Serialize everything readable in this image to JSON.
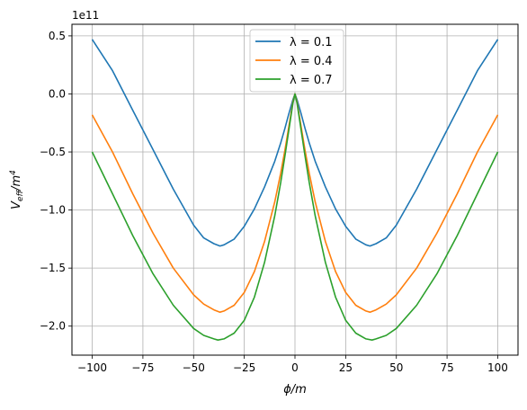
{
  "chart_data": {
    "type": "line",
    "title": "",
    "xlabel_main": "ϕ",
    "xlabel_unit": "/m",
    "ylabel_main": "V",
    "ylabel_sub": "eff",
    "ylabel_unit": "/m",
    "ylabel_sup": "4",
    "y_offset_text": "1e11",
    "xlim": [
      -110,
      110
    ],
    "ylim": [
      -2.25,
      0.6
    ],
    "xticks": [
      -100,
      -75,
      -50,
      -25,
      0,
      25,
      50,
      75,
      100
    ],
    "xtick_labels": [
      "−100",
      "−75",
      "−50",
      "−25",
      "0",
      "25",
      "50",
      "75",
      "100"
    ],
    "yticks": [
      -2.0,
      -1.5,
      -1.0,
      -0.5,
      0.0,
      0.5
    ],
    "ytick_labels": [
      "−2.0",
      "−1.5",
      "−1.0",
      "−0.5",
      "0.0",
      "0.5"
    ],
    "grid": true,
    "legend_position": "top-center",
    "series": [
      {
        "name": "λ = 0.1",
        "color": "#1f77b4",
        "x": [
          -100,
          -90,
          -80,
          -70,
          -60,
          -50,
          -45,
          -40,
          -37,
          -35,
          -30,
          -25,
          -20,
          -15,
          -10,
          -7,
          -5,
          -3,
          -1,
          0,
          1,
          3,
          5,
          7,
          10,
          15,
          20,
          25,
          30,
          35,
          37,
          40,
          45,
          50,
          60,
          70,
          80,
          90,
          100
        ],
        "y": [
          0.47,
          0.2,
          -0.14,
          -0.48,
          -0.82,
          -1.13,
          -1.24,
          -1.29,
          -1.31,
          -1.3,
          -1.25,
          -1.14,
          -0.99,
          -0.8,
          -0.58,
          -0.42,
          -0.3,
          -0.17,
          -0.05,
          0.0,
          -0.05,
          -0.17,
          -0.3,
          -0.42,
          -0.58,
          -0.8,
          -0.99,
          -1.14,
          -1.25,
          -1.3,
          -1.31,
          -1.29,
          -1.24,
          -1.13,
          -0.82,
          -0.48,
          -0.14,
          0.2,
          0.47
        ]
      },
      {
        "name": "λ = 0.4",
        "color": "#ff7f0e",
        "x": [
          -100,
          -90,
          -80,
          -70,
          -60,
          -50,
          -45,
          -40,
          -37,
          -35,
          -30,
          -25,
          -20,
          -15,
          -10,
          -7,
          -5,
          -3,
          -1,
          0,
          1,
          3,
          5,
          7,
          10,
          15,
          20,
          25,
          30,
          35,
          37,
          40,
          45,
          50,
          60,
          70,
          80,
          90,
          100
        ],
        "y": [
          -0.18,
          -0.5,
          -0.86,
          -1.2,
          -1.5,
          -1.73,
          -1.81,
          -1.86,
          -1.88,
          -1.87,
          -1.82,
          -1.71,
          -1.53,
          -1.27,
          -0.93,
          -0.68,
          -0.49,
          -0.28,
          -0.07,
          0.0,
          -0.07,
          -0.28,
          -0.49,
          -0.68,
          -0.93,
          -1.27,
          -1.53,
          -1.71,
          -1.82,
          -1.87,
          -1.88,
          -1.86,
          -1.81,
          -1.73,
          -1.5,
          -1.2,
          -0.86,
          -0.5,
          -0.18
        ]
      },
      {
        "name": "λ = 0.7",
        "color": "#2ca02c",
        "x": [
          -100,
          -90,
          -80,
          -70,
          -60,
          -50,
          -45,
          -40,
          -38,
          -35,
          -30,
          -25,
          -20,
          -15,
          -10,
          -7,
          -5,
          -3,
          -1,
          0,
          1,
          3,
          5,
          7,
          10,
          15,
          20,
          25,
          30,
          35,
          38,
          40,
          45,
          50,
          60,
          70,
          80,
          90,
          100
        ],
        "y": [
          -0.5,
          -0.86,
          -1.22,
          -1.55,
          -1.82,
          -2.02,
          -2.08,
          -2.11,
          -2.12,
          -2.11,
          -2.06,
          -1.95,
          -1.75,
          -1.45,
          -1.05,
          -0.76,
          -0.54,
          -0.31,
          -0.08,
          0.0,
          -0.08,
          -0.31,
          -0.54,
          -0.76,
          -1.05,
          -1.45,
          -1.75,
          -1.95,
          -2.06,
          -2.11,
          -2.12,
          -2.11,
          -2.08,
          -2.02,
          -1.82,
          -1.55,
          -1.22,
          -0.86,
          -0.5
        ]
      }
    ]
  }
}
